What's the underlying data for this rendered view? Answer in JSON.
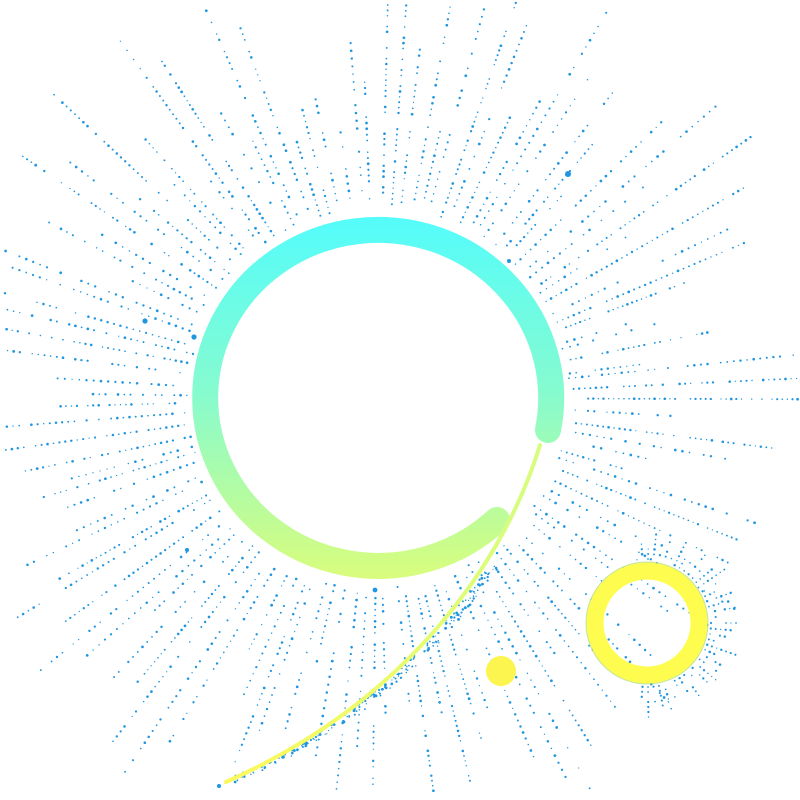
{
  "colors": {
    "background": "#ffffff",
    "dots": "#2196e0",
    "ring_top": "#52fcfd",
    "ring_mid": "#86fbcf",
    "ring_bottom": "#d8fd7e",
    "tail": "#fdfa5a",
    "small_ring": "#fdfc4f",
    "small_ring_outline": "#a8d86a",
    "sun_dot": "#fdf54f"
  },
  "graphic": {
    "elements": [
      "dotted-radial-burst",
      "gradient-ring",
      "ring-tail-stroke",
      "small-yellow-ring",
      "yellow-dot"
    ]
  }
}
